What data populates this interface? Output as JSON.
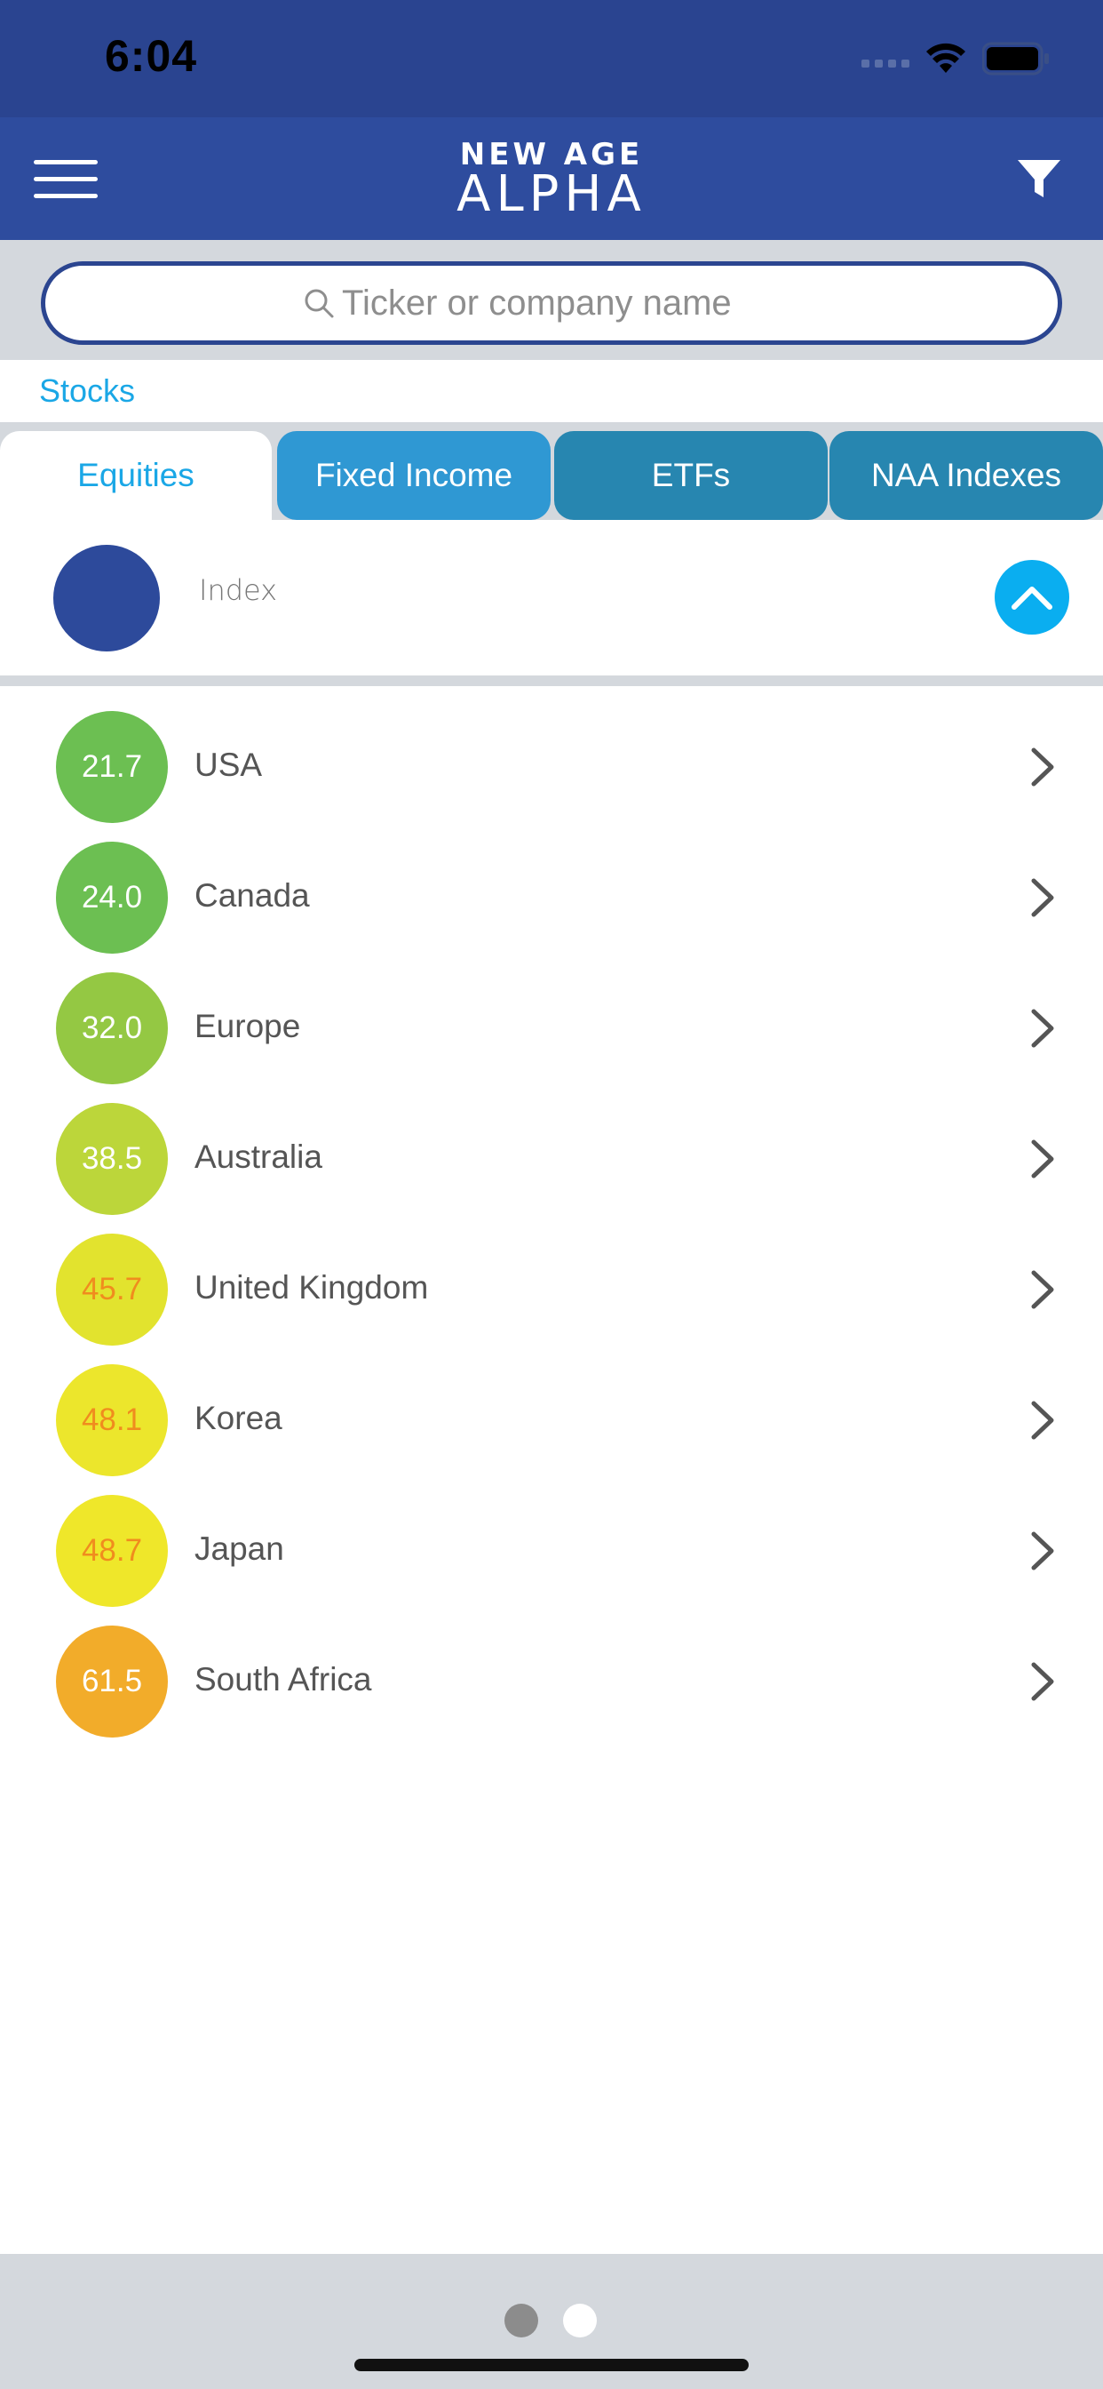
{
  "status_bar": {
    "time": "6:04"
  },
  "header": {
    "logo_line1": "NEW AGE",
    "logo_line2": "ALPHA"
  },
  "search": {
    "placeholder": "Ticker or company name"
  },
  "section": {
    "label": "Stocks"
  },
  "tabs": [
    {
      "label": "Equities",
      "active": true
    },
    {
      "label": "Fixed Income",
      "active": false
    },
    {
      "label": "ETFs",
      "active": false
    },
    {
      "label": "NAA Indexes",
      "active": false
    }
  ],
  "index_panel": {
    "label": "Index"
  },
  "regions": [
    {
      "score": "21.7",
      "name": "USA",
      "color": "#6cbf52",
      "text_color": "#ffffff"
    },
    {
      "score": "24.0",
      "name": "Canada",
      "color": "#6cbf52",
      "text_color": "#ffffff"
    },
    {
      "score": "32.0",
      "name": "Europe",
      "color": "#94c843",
      "text_color": "#ffffff"
    },
    {
      "score": "38.5",
      "name": "Australia",
      "color": "#bcd63a",
      "text_color": "#ffffff"
    },
    {
      "score": "45.7",
      "name": "United Kingdom",
      "color": "#e2e32e",
      "text_color": "#f08c1e"
    },
    {
      "score": "48.1",
      "name": "Korea",
      "color": "#ece62c",
      "text_color": "#f08c1e"
    },
    {
      "score": "48.7",
      "name": "Japan",
      "color": "#efe72a",
      "text_color": "#f08c1e"
    },
    {
      "score": "61.5",
      "name": "South Africa",
      "color": "#f2ac2a",
      "text_color": "#ffffff"
    }
  ],
  "pager": {
    "pages": 2,
    "current": 1
  },
  "colors": {
    "header_bg": "#2e4c9e",
    "accent_blue": "#1aa7e6",
    "tab_fixed_income": "#2f98d3",
    "tab_other": "#2786b0"
  }
}
